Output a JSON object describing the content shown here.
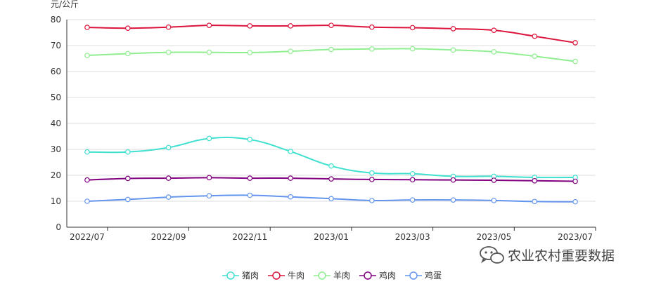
{
  "chart_data": {
    "type": "line",
    "y_unit": "元/公斤",
    "ylim": [
      0,
      80
    ],
    "yticks": [
      0,
      10,
      20,
      30,
      40,
      50,
      60,
      70,
      80
    ],
    "grid": true,
    "legend_position": "bottom-center",
    "x": [
      "2022/07",
      "2022/08",
      "2022/09",
      "2022/10",
      "2022/11",
      "2022/12",
      "2023/01",
      "2023/02",
      "2023/03",
      "2023/04",
      "2023/05",
      "2023/06",
      "2023/07"
    ],
    "x_tick_labels": [
      "2022/07",
      "2022/09",
      "2022/11",
      "2023/01",
      "2023/03",
      "2023/05",
      "2023/07"
    ],
    "series": [
      {
        "name": "猪肉",
        "color": "#40e0d0",
        "values": [
          29.0,
          29.0,
          30.7,
          34.2,
          33.8,
          29.2,
          23.6,
          20.9,
          20.6,
          19.6,
          19.6,
          19.2,
          19.2
        ]
      },
      {
        "name": "牛肉",
        "color": "#dc143c",
        "values": [
          77.0,
          76.7,
          77.1,
          77.8,
          77.6,
          77.6,
          77.8,
          77.1,
          76.9,
          76.5,
          75.9,
          73.6,
          71.1
        ]
      },
      {
        "name": "羊肉",
        "color": "#90ee90",
        "values": [
          66.2,
          66.9,
          67.4,
          67.4,
          67.3,
          67.8,
          68.5,
          68.7,
          68.8,
          68.3,
          67.6,
          65.9,
          63.9
        ]
      },
      {
        "name": "鸡肉",
        "color": "#800080",
        "values": [
          18.2,
          18.8,
          18.9,
          19.1,
          18.9,
          18.9,
          18.6,
          18.4,
          18.3,
          18.2,
          18.1,
          17.9,
          17.7
        ]
      },
      {
        "name": "鸡蛋",
        "color": "#6495ed",
        "values": [
          10.0,
          10.7,
          11.6,
          12.1,
          12.3,
          11.7,
          11.0,
          10.3,
          10.5,
          10.5,
          10.3,
          9.9,
          9.8
        ]
      }
    ]
  },
  "watermark": {
    "text": "农业农村重要数据",
    "icon": "wechat-icon"
  }
}
